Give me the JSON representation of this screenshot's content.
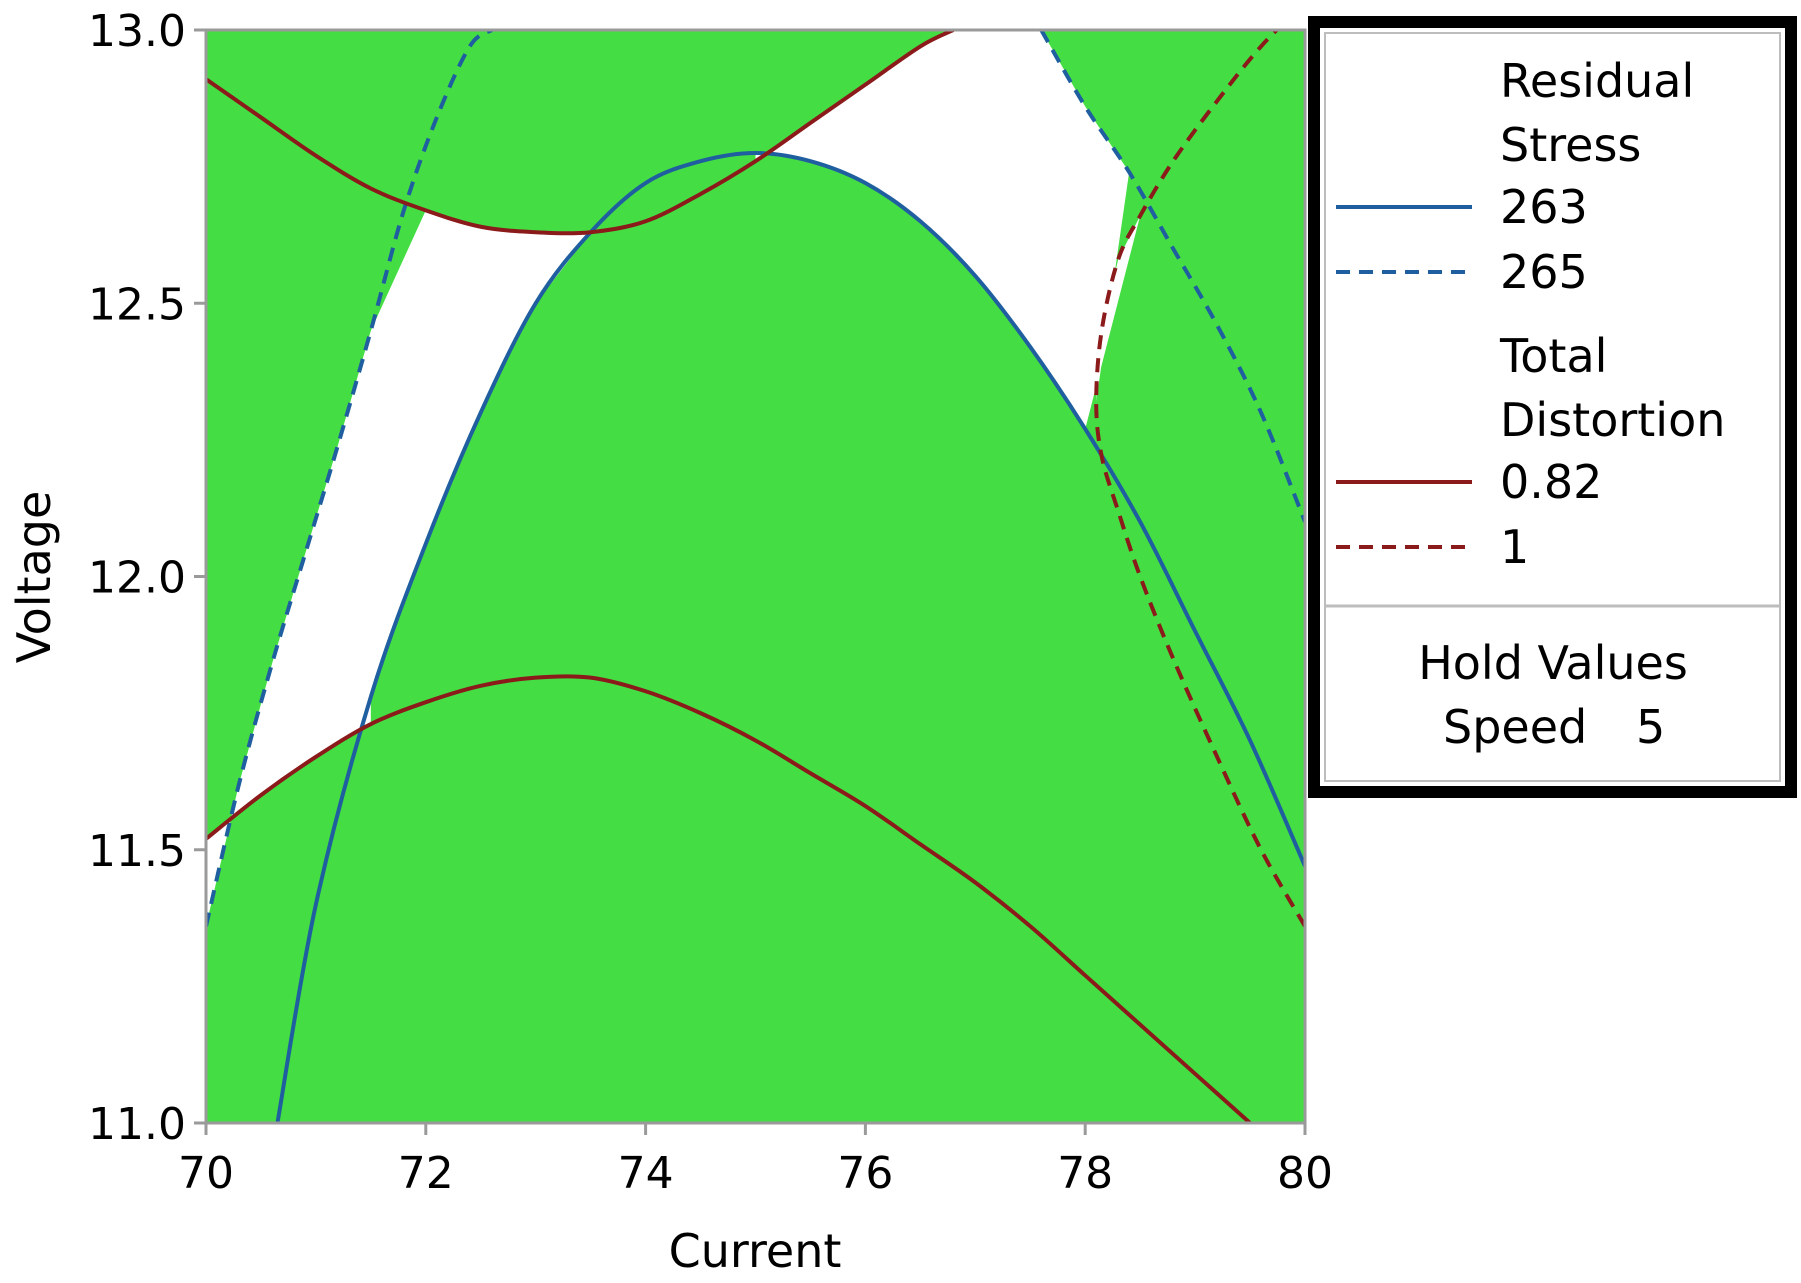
{
  "chart_data": {
    "type": "contour",
    "xlabel": "Current",
    "ylabel": "Voltage",
    "xlim": [
      70,
      80
    ],
    "ylim": [
      11.0,
      13.0
    ],
    "x_ticks": [
      "70",
      "72",
      "74",
      "76",
      "78",
      "80"
    ],
    "y_ticks": [
      "11.0",
      "11.5",
      "12.0",
      "12.5",
      "13.0"
    ],
    "infeasible_color": "#44dd44",
    "feasible_color": "#ffffff",
    "legend": {
      "groups": [
        {
          "title_lines": [
            "Residual",
            "Stress"
          ],
          "entries": [
            {
              "label": "263",
              "color": "#1f5fa0",
              "dash": "solid"
            },
            {
              "label": "265",
              "color": "#1f5fa0",
              "dash": "dashed"
            }
          ]
        },
        {
          "title_lines": [
            "Total",
            "Distortion"
          ],
          "entries": [
            {
              "label": "0.82",
              "color": "#8b1a1a",
              "dash": "solid"
            },
            {
              "label": "1",
              "color": "#8b1a1a",
              "dash": "dashed"
            }
          ]
        }
      ],
      "hold_values_title": "Hold Values",
      "hold_values": [
        {
          "name": "Speed",
          "value": "5"
        }
      ]
    },
    "series": [
      {
        "name": "Residual Stress 263",
        "style": "solid",
        "color": "#1f5fa0",
        "x": [
          70.65,
          71.0,
          71.5,
          72.0,
          72.5,
          73.0,
          73.5,
          74.0,
          74.5,
          75.0,
          75.5,
          76.0,
          76.5,
          77.0,
          77.5,
          78.0,
          78.5,
          79.0,
          79.5,
          80.0
        ],
        "y": [
          11.0,
          11.4,
          11.78,
          12.06,
          12.3,
          12.5,
          12.63,
          12.72,
          12.76,
          12.775,
          12.76,
          12.72,
          12.65,
          12.55,
          12.42,
          12.27,
          12.1,
          11.9,
          11.7,
          11.47
        ]
      },
      {
        "name": "Residual Stress 265 (left)",
        "style": "dashed",
        "color": "#1f5fa0",
        "x": [
          70.0,
          70.3,
          70.6,
          70.9,
          71.2,
          71.5,
          71.8,
          72.1,
          72.4,
          72.6
        ],
        "y": [
          11.36,
          11.62,
          11.84,
          12.04,
          12.24,
          12.45,
          12.67,
          12.84,
          12.97,
          13.0
        ]
      },
      {
        "name": "Residual Stress 265 (right)",
        "style": "dashed",
        "color": "#1f5fa0",
        "x": [
          77.6,
          78.0,
          78.4,
          78.8,
          79.2,
          79.6,
          80.0
        ],
        "y": [
          13.0,
          12.86,
          12.74,
          12.6,
          12.46,
          12.3,
          12.1
        ]
      },
      {
        "name": "Total Distortion 0.82 (upper)",
        "style": "solid",
        "color": "#8b1a1a",
        "x": [
          70.0,
          70.5,
          71.0,
          71.5,
          72.0,
          72.5,
          73.0,
          73.5,
          74.0,
          74.5,
          75.0,
          75.5,
          76.0,
          76.5,
          76.8
        ],
        "y": [
          12.91,
          12.84,
          12.77,
          12.71,
          12.67,
          12.64,
          12.63,
          12.63,
          12.65,
          12.7,
          12.76,
          12.83,
          12.9,
          12.97,
          13.0
        ]
      },
      {
        "name": "Total Distortion 0.82 (lower)",
        "style": "solid",
        "color": "#8b1a1a",
        "x": [
          70.0,
          70.5,
          71.0,
          71.5,
          72.0,
          72.5,
          73.0,
          73.5,
          74.0,
          74.5,
          75.0,
          75.5,
          76.0,
          76.5,
          77.0,
          77.5,
          78.0,
          78.5,
          79.0,
          79.5
        ],
        "y": [
          11.52,
          11.6,
          11.67,
          11.73,
          11.77,
          11.8,
          11.815,
          11.815,
          11.79,
          11.75,
          11.7,
          11.64,
          11.58,
          11.51,
          11.44,
          11.36,
          11.27,
          11.18,
          11.09,
          11.0
        ]
      },
      {
        "name": "Total Distortion 1",
        "style": "dashed",
        "color": "#8b1a1a",
        "x": [
          80.0,
          79.6,
          79.2,
          78.8,
          78.5,
          78.3,
          78.15,
          78.1,
          78.15,
          78.3,
          78.5,
          78.8,
          79.2,
          79.6,
          80.0
        ],
        "y": [
          11.36,
          11.5,
          11.67,
          11.85,
          12.0,
          12.12,
          12.22,
          12.32,
          12.45,
          12.58,
          12.66,
          12.76,
          12.87,
          12.97,
          13.05
        ]
      }
    ]
  }
}
